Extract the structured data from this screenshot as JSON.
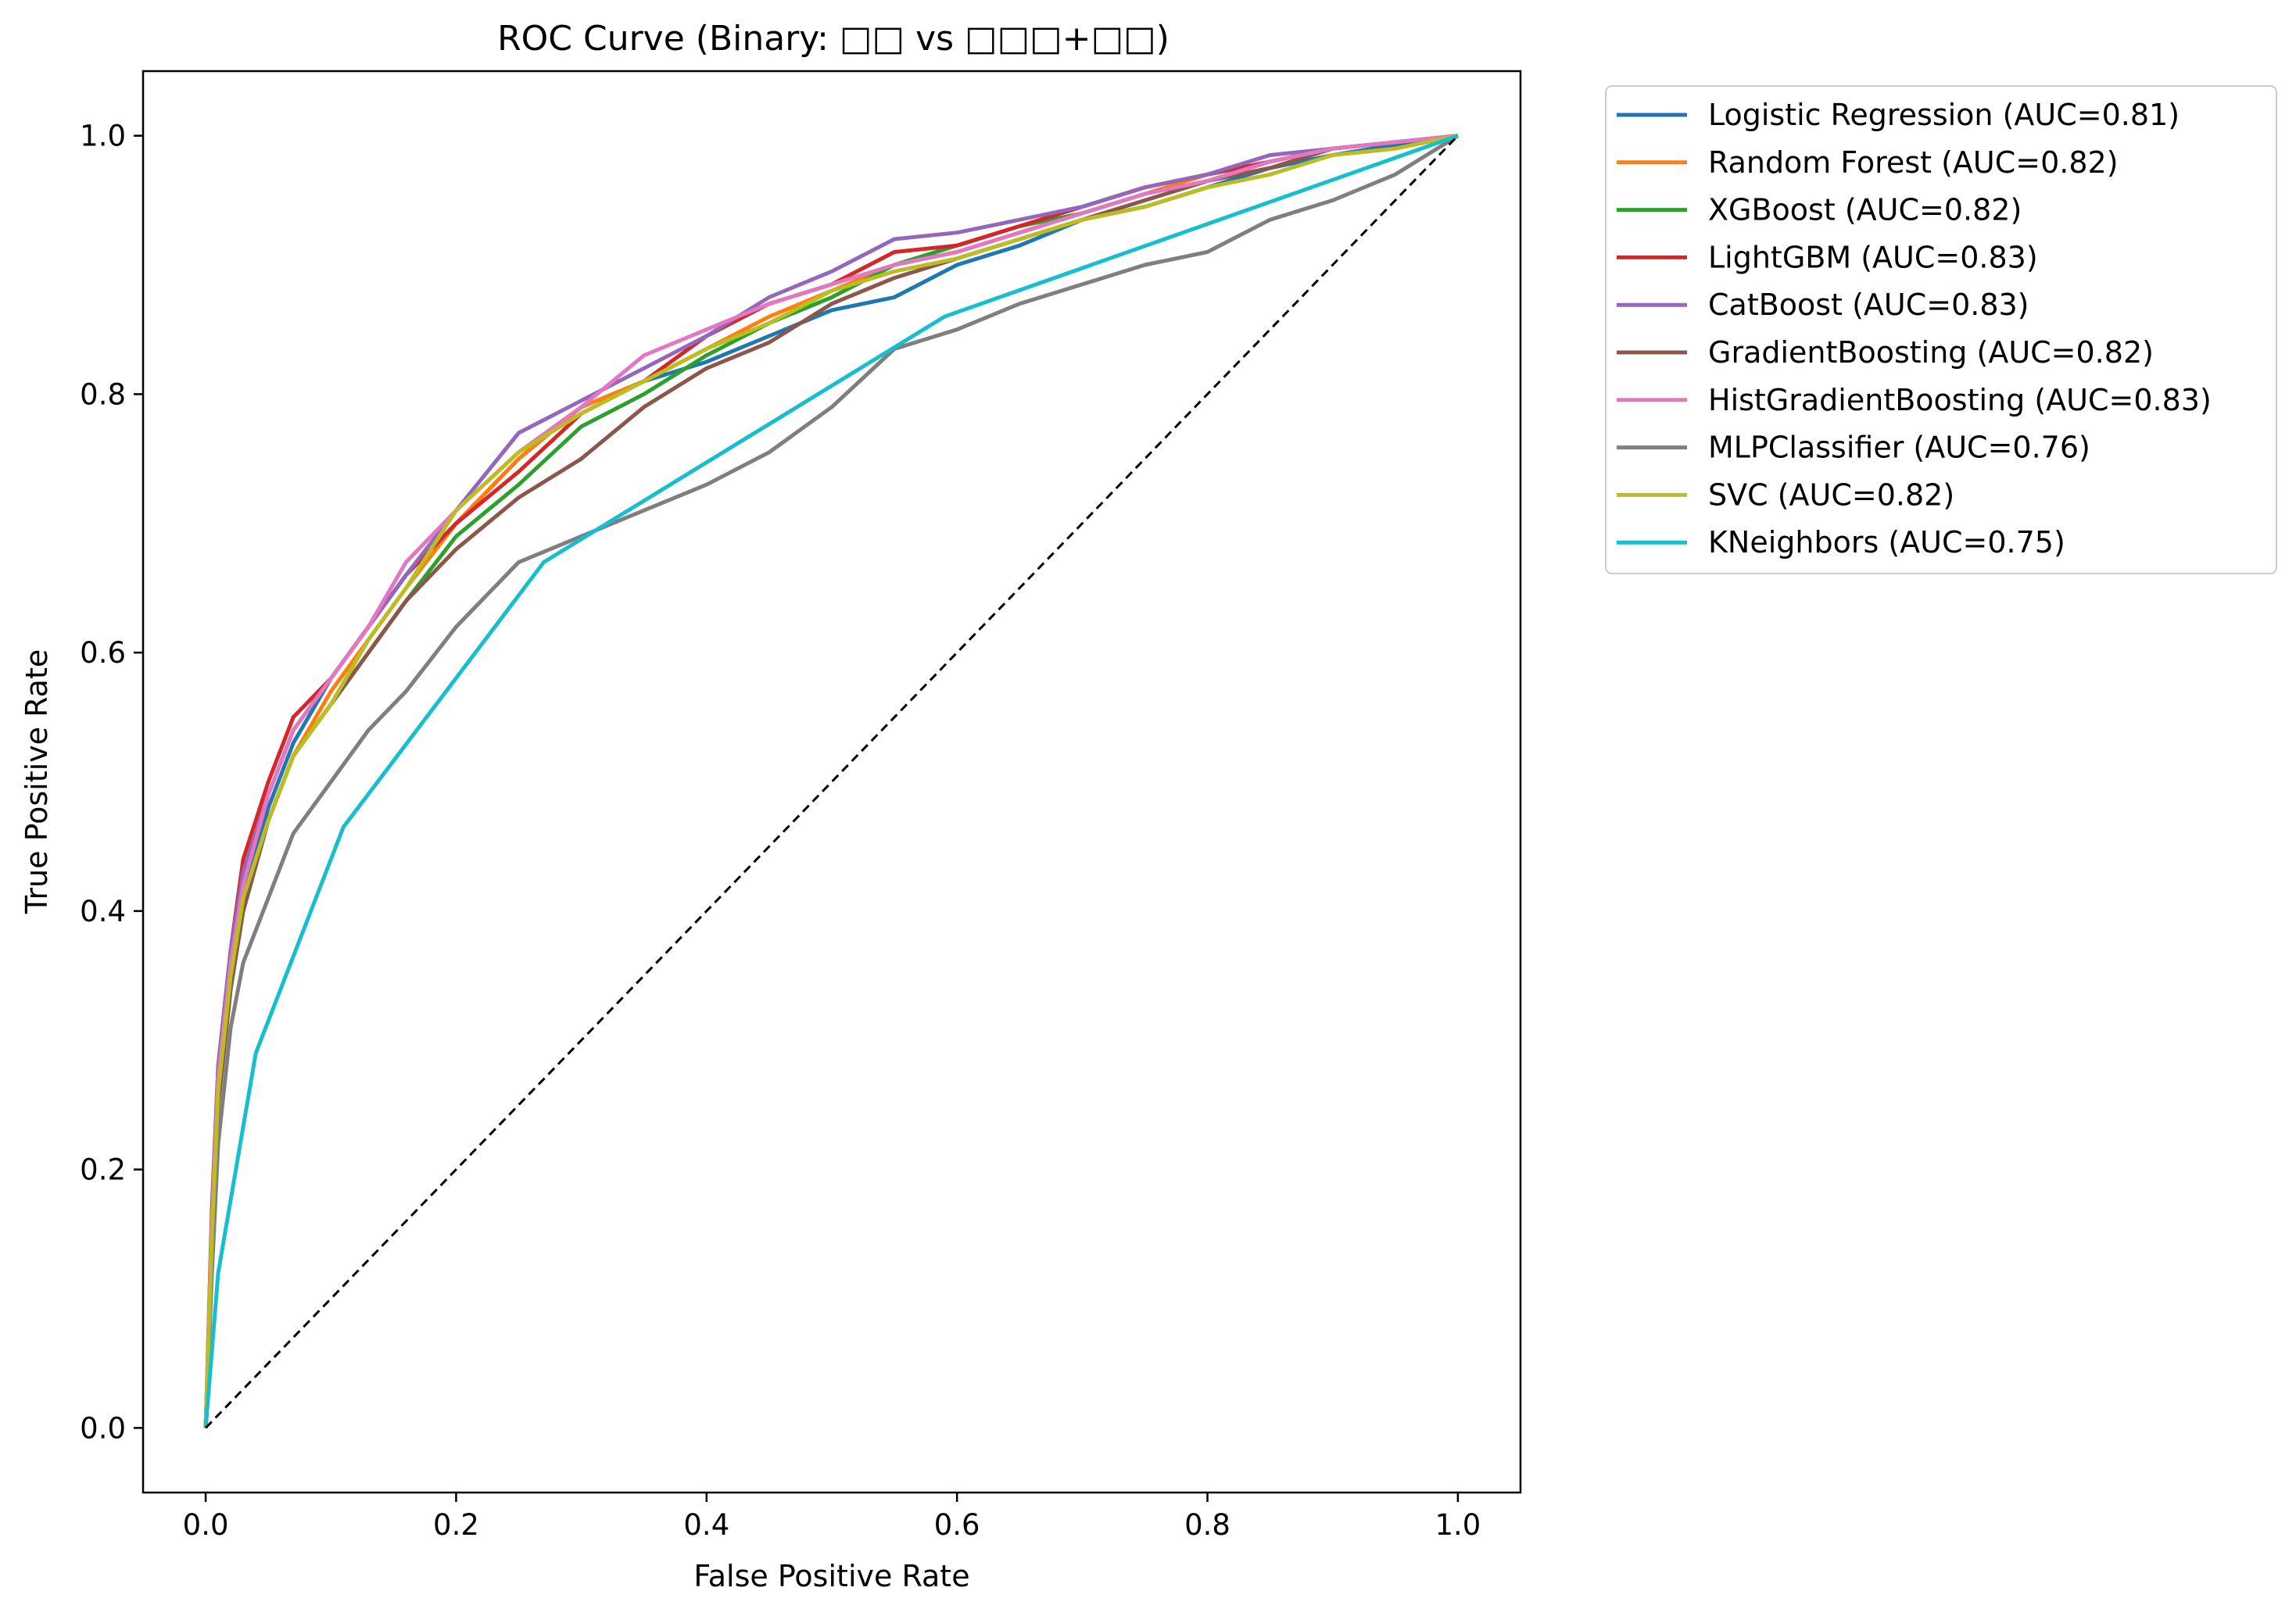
{
  "chart_data": {
    "type": "line",
    "title": "ROC Curve (Binary: □□ vs □□□+□□)",
    "xlabel": "False Positive Rate",
    "ylabel": "True Positive Rate",
    "xlim": [
      -0.05,
      1.05
    ],
    "ylim": [
      -0.05,
      1.05
    ],
    "xticks": [
      "0.0",
      "0.2",
      "0.4",
      "0.6",
      "0.8",
      "1.0"
    ],
    "yticks": [
      "0.0",
      "0.2",
      "0.4",
      "0.6",
      "0.8",
      "1.0"
    ],
    "grid": false,
    "legend_position": "outside upper-right",
    "reference_line": {
      "x": [
        0,
        1
      ],
      "y": [
        0,
        1
      ],
      "color": "#000000",
      "style": "dashed"
    },
    "series": [
      {
        "name": "Logistic Regression (AUC=0.81)",
        "color": "#1f77b4",
        "x": [
          0,
          0.005,
          0.01,
          0.02,
          0.03,
          0.05,
          0.07,
          0.1,
          0.13,
          0.16,
          0.2,
          0.25,
          0.3,
          0.35,
          0.4,
          0.45,
          0.5,
          0.55,
          0.6,
          0.65,
          0.7,
          0.75,
          0.8,
          0.85,
          0.9,
          0.95,
          1.0
        ],
        "y": [
          0,
          0.15,
          0.26,
          0.35,
          0.41,
          0.48,
          0.53,
          0.58,
          0.62,
          0.66,
          0.7,
          0.75,
          0.79,
          0.81,
          0.825,
          0.845,
          0.865,
          0.875,
          0.9,
          0.915,
          0.935,
          0.945,
          0.96,
          0.975,
          0.985,
          0.993,
          1.0
        ]
      },
      {
        "name": "Random Forest (AUC=0.82)",
        "color": "#ff7f0e",
        "x": [
          0,
          0.005,
          0.01,
          0.02,
          0.03,
          0.05,
          0.07,
          0.1,
          0.13,
          0.16,
          0.2,
          0.25,
          0.3,
          0.35,
          0.4,
          0.45,
          0.5,
          0.55,
          0.6,
          0.65,
          0.7,
          0.75,
          0.8,
          0.85,
          0.9,
          0.95,
          1.0
        ],
        "y": [
          0,
          0.14,
          0.25,
          0.34,
          0.41,
          0.47,
          0.52,
          0.57,
          0.61,
          0.65,
          0.7,
          0.75,
          0.79,
          0.81,
          0.835,
          0.86,
          0.88,
          0.9,
          0.91,
          0.925,
          0.94,
          0.955,
          0.97,
          0.98,
          0.99,
          0.995,
          1.0
        ]
      },
      {
        "name": "XGBoost (AUC=0.82)",
        "color": "#2ca02c",
        "x": [
          0,
          0.005,
          0.01,
          0.02,
          0.03,
          0.05,
          0.07,
          0.1,
          0.13,
          0.16,
          0.2,
          0.25,
          0.3,
          0.35,
          0.4,
          0.45,
          0.5,
          0.55,
          0.6,
          0.65,
          0.7,
          0.75,
          0.8,
          0.85,
          0.9,
          0.95,
          1.0
        ],
        "y": [
          0,
          0.14,
          0.25,
          0.34,
          0.4,
          0.47,
          0.52,
          0.56,
          0.6,
          0.64,
          0.69,
          0.73,
          0.775,
          0.8,
          0.83,
          0.855,
          0.875,
          0.9,
          0.915,
          0.93,
          0.94,
          0.955,
          0.965,
          0.98,
          0.99,
          0.995,
          1.0
        ]
      },
      {
        "name": "LightGBM (AUC=0.83)",
        "color": "#d62728",
        "x": [
          0,
          0.005,
          0.01,
          0.02,
          0.03,
          0.05,
          0.07,
          0.1,
          0.13,
          0.16,
          0.2,
          0.25,
          0.3,
          0.35,
          0.4,
          0.45,
          0.5,
          0.55,
          0.6,
          0.65,
          0.7,
          0.75,
          0.8,
          0.85,
          0.9,
          0.95,
          1.0
        ],
        "y": [
          0,
          0.17,
          0.28,
          0.37,
          0.44,
          0.5,
          0.55,
          0.58,
          0.62,
          0.66,
          0.7,
          0.74,
          0.785,
          0.81,
          0.845,
          0.87,
          0.885,
          0.91,
          0.915,
          0.93,
          0.945,
          0.96,
          0.97,
          0.98,
          0.99,
          0.995,
          1.0
        ]
      },
      {
        "name": "CatBoost (AUC=0.83)",
        "color": "#9467bd",
        "x": [
          0,
          0.005,
          0.01,
          0.02,
          0.03,
          0.05,
          0.07,
          0.1,
          0.13,
          0.16,
          0.2,
          0.25,
          0.3,
          0.35,
          0.4,
          0.45,
          0.5,
          0.55,
          0.6,
          0.65,
          0.7,
          0.75,
          0.8,
          0.85,
          0.9,
          0.95,
          1.0
        ],
        "y": [
          0,
          0.16,
          0.28,
          0.37,
          0.43,
          0.49,
          0.54,
          0.58,
          0.62,
          0.66,
          0.71,
          0.77,
          0.795,
          0.82,
          0.845,
          0.875,
          0.895,
          0.92,
          0.925,
          0.935,
          0.945,
          0.96,
          0.97,
          0.985,
          0.99,
          0.995,
          1.0
        ]
      },
      {
        "name": "GradientBoosting (AUC=0.82)",
        "color": "#8c564b",
        "x": [
          0,
          0.005,
          0.01,
          0.02,
          0.03,
          0.05,
          0.07,
          0.1,
          0.13,
          0.16,
          0.2,
          0.25,
          0.3,
          0.35,
          0.4,
          0.45,
          0.5,
          0.55,
          0.6,
          0.65,
          0.7,
          0.75,
          0.8,
          0.85,
          0.9,
          0.95,
          1.0
        ],
        "y": [
          0,
          0.14,
          0.25,
          0.34,
          0.4,
          0.47,
          0.52,
          0.56,
          0.6,
          0.64,
          0.68,
          0.72,
          0.75,
          0.79,
          0.82,
          0.84,
          0.87,
          0.89,
          0.905,
          0.92,
          0.935,
          0.95,
          0.965,
          0.975,
          0.99,
          0.995,
          1.0
        ]
      },
      {
        "name": "HistGradientBoosting (AUC=0.83)",
        "color": "#e377c2",
        "x": [
          0,
          0.005,
          0.01,
          0.02,
          0.03,
          0.05,
          0.07,
          0.1,
          0.13,
          0.16,
          0.2,
          0.25,
          0.3,
          0.35,
          0.4,
          0.45,
          0.5,
          0.55,
          0.6,
          0.65,
          0.7,
          0.75,
          0.8,
          0.85,
          0.9,
          0.95,
          1.0
        ],
        "y": [
          0,
          0.16,
          0.27,
          0.36,
          0.42,
          0.49,
          0.54,
          0.58,
          0.62,
          0.67,
          0.71,
          0.755,
          0.79,
          0.83,
          0.85,
          0.87,
          0.885,
          0.9,
          0.91,
          0.925,
          0.94,
          0.955,
          0.965,
          0.98,
          0.99,
          0.995,
          1.0
        ]
      },
      {
        "name": "MLPClassifier (AUC=0.76)",
        "color": "#7f7f7f",
        "x": [
          0,
          0.005,
          0.01,
          0.02,
          0.03,
          0.05,
          0.07,
          0.1,
          0.13,
          0.16,
          0.2,
          0.25,
          0.3,
          0.35,
          0.4,
          0.45,
          0.5,
          0.55,
          0.6,
          0.65,
          0.7,
          0.75,
          0.8,
          0.85,
          0.9,
          0.95,
          1.0
        ],
        "y": [
          0,
          0.12,
          0.22,
          0.31,
          0.36,
          0.41,
          0.46,
          0.5,
          0.54,
          0.57,
          0.62,
          0.67,
          0.69,
          0.71,
          0.73,
          0.755,
          0.79,
          0.835,
          0.85,
          0.87,
          0.885,
          0.9,
          0.91,
          0.935,
          0.95,
          0.97,
          1.0
        ]
      },
      {
        "name": "SVC (AUC=0.82)",
        "color": "#bcbd22",
        "x": [
          0,
          0.005,
          0.01,
          0.02,
          0.03,
          0.05,
          0.07,
          0.1,
          0.13,
          0.16,
          0.2,
          0.25,
          0.3,
          0.35,
          0.4,
          0.45,
          0.5,
          0.55,
          0.6,
          0.65,
          0.7,
          0.75,
          0.8,
          0.85,
          0.9,
          0.95,
          1.0
        ],
        "y": [
          0,
          0.15,
          0.26,
          0.35,
          0.41,
          0.47,
          0.52,
          0.56,
          0.61,
          0.65,
          0.71,
          0.755,
          0.785,
          0.81,
          0.835,
          0.855,
          0.88,
          0.895,
          0.905,
          0.92,
          0.935,
          0.945,
          0.96,
          0.97,
          0.985,
          0.99,
          1.0
        ]
      },
      {
        "name": "KNeighbors (AUC=0.75)",
        "color": "#17becf",
        "x": [
          0,
          0.01,
          0.04,
          0.11,
          0.27,
          0.59,
          1.0
        ],
        "y": [
          0,
          0.12,
          0.29,
          0.465,
          0.67,
          0.86,
          1.0
        ]
      }
    ]
  }
}
